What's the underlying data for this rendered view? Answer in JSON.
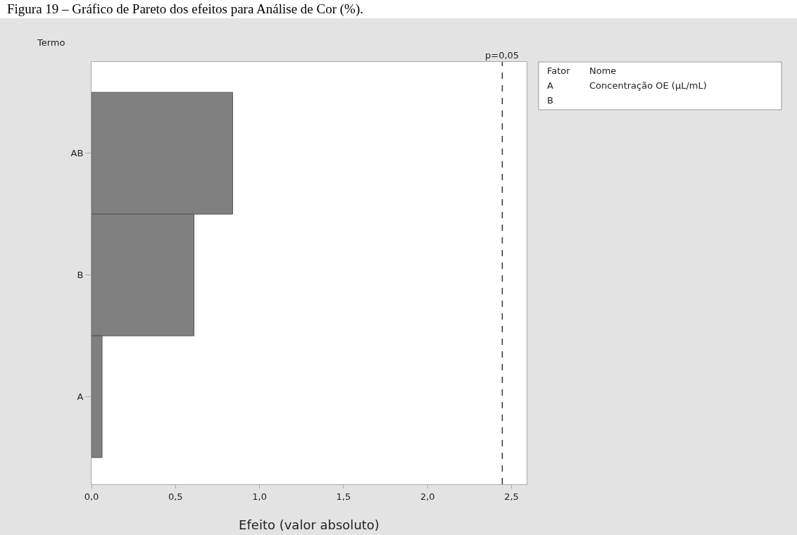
{
  "chart_data": {
    "type": "bar",
    "orientation": "horizontal",
    "title": "Figura 19 – Gráfico de Pareto dos efeitos para Análise de Cor (%).",
    "ylabel": "Termo",
    "xlabel": "Efeito (valor absoluto)",
    "categories": [
      "AB",
      "B",
      "A"
    ],
    "values": [
      0.84,
      0.61,
      0.063
    ],
    "color": "#808080",
    "xlim": [
      0,
      2.59
    ],
    "xticks": [
      {
        "value": 0,
        "label": "0,0"
      },
      {
        "value": 0.5,
        "label": "0,5"
      },
      {
        "value": 1,
        "label": "1,0"
      },
      {
        "value": 1.5,
        "label": "1,5"
      },
      {
        "value": 2,
        "label": "2,0"
      },
      {
        "value": 2.5,
        "label": "2,5"
      }
    ],
    "grid": false,
    "legend": false,
    "ref_lines": [
      {
        "axis": "x",
        "value": 2.445,
        "color": "#333333",
        "line_style": "dashed"
      }
    ],
    "annotations": [
      "p=0,05",
      "Fator",
      "Nome",
      "A",
      "Concentração OE (µL/mL)",
      "B"
    ]
  }
}
